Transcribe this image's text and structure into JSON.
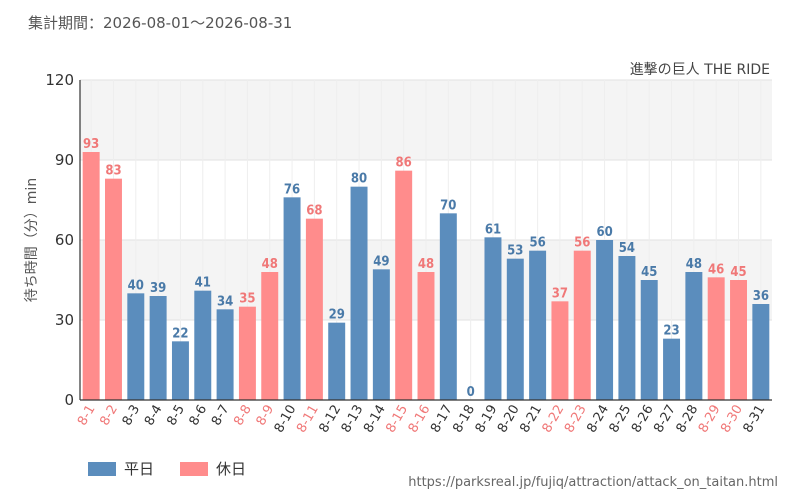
{
  "header": {
    "period_label": "集計期間：2026-08-01～2026-08-31"
  },
  "footer": {
    "source_url": "https://parksreal.jp/fujiq/attraction/attack_on_taitan.html"
  },
  "colors": {
    "weekday": "#5b8dbd",
    "holiday": "#ff8c8c",
    "weekday_text": "#4a7aa8",
    "holiday_text": "#f07878"
  },
  "chart_data": {
    "type": "bar",
    "title": "進撃の巨人 THE RIDE",
    "ylabel": "待ち時間（分）min",
    "xlabel": "",
    "ylim": [
      0,
      120
    ],
    "yticks": [
      0,
      30,
      60,
      90,
      120
    ],
    "categories": [
      "8-1",
      "8-2",
      "8-3",
      "8-4",
      "8-5",
      "8-6",
      "8-7",
      "8-8",
      "8-9",
      "8-10",
      "8-11",
      "8-12",
      "8-13",
      "8-14",
      "8-15",
      "8-16",
      "8-17",
      "8-18",
      "8-19",
      "8-20",
      "8-21",
      "8-22",
      "8-23",
      "8-24",
      "8-25",
      "8-26",
      "8-27",
      "8-28",
      "8-29",
      "8-30",
      "8-31"
    ],
    "values": [
      93,
      83,
      40,
      39,
      22,
      41,
      34,
      35,
      48,
      76,
      68,
      29,
      80,
      49,
      86,
      48,
      70,
      0,
      61,
      53,
      56,
      37,
      56,
      60,
      54,
      45,
      23,
      48,
      46,
      45,
      36
    ],
    "day_type": [
      "holiday",
      "holiday",
      "weekday",
      "weekday",
      "weekday",
      "weekday",
      "weekday",
      "holiday",
      "holiday",
      "weekday",
      "holiday",
      "weekday",
      "weekday",
      "weekday",
      "holiday",
      "holiday",
      "weekday",
      "weekday",
      "weekday",
      "weekday",
      "weekday",
      "holiday",
      "holiday",
      "weekday",
      "weekday",
      "weekday",
      "weekday",
      "weekday",
      "holiday",
      "holiday",
      "weekday"
    ],
    "legend": [
      {
        "name": "平日",
        "key": "weekday"
      },
      {
        "name": "休日",
        "key": "holiday"
      }
    ],
    "legend_position": "bottom-left",
    "grid": true
  }
}
